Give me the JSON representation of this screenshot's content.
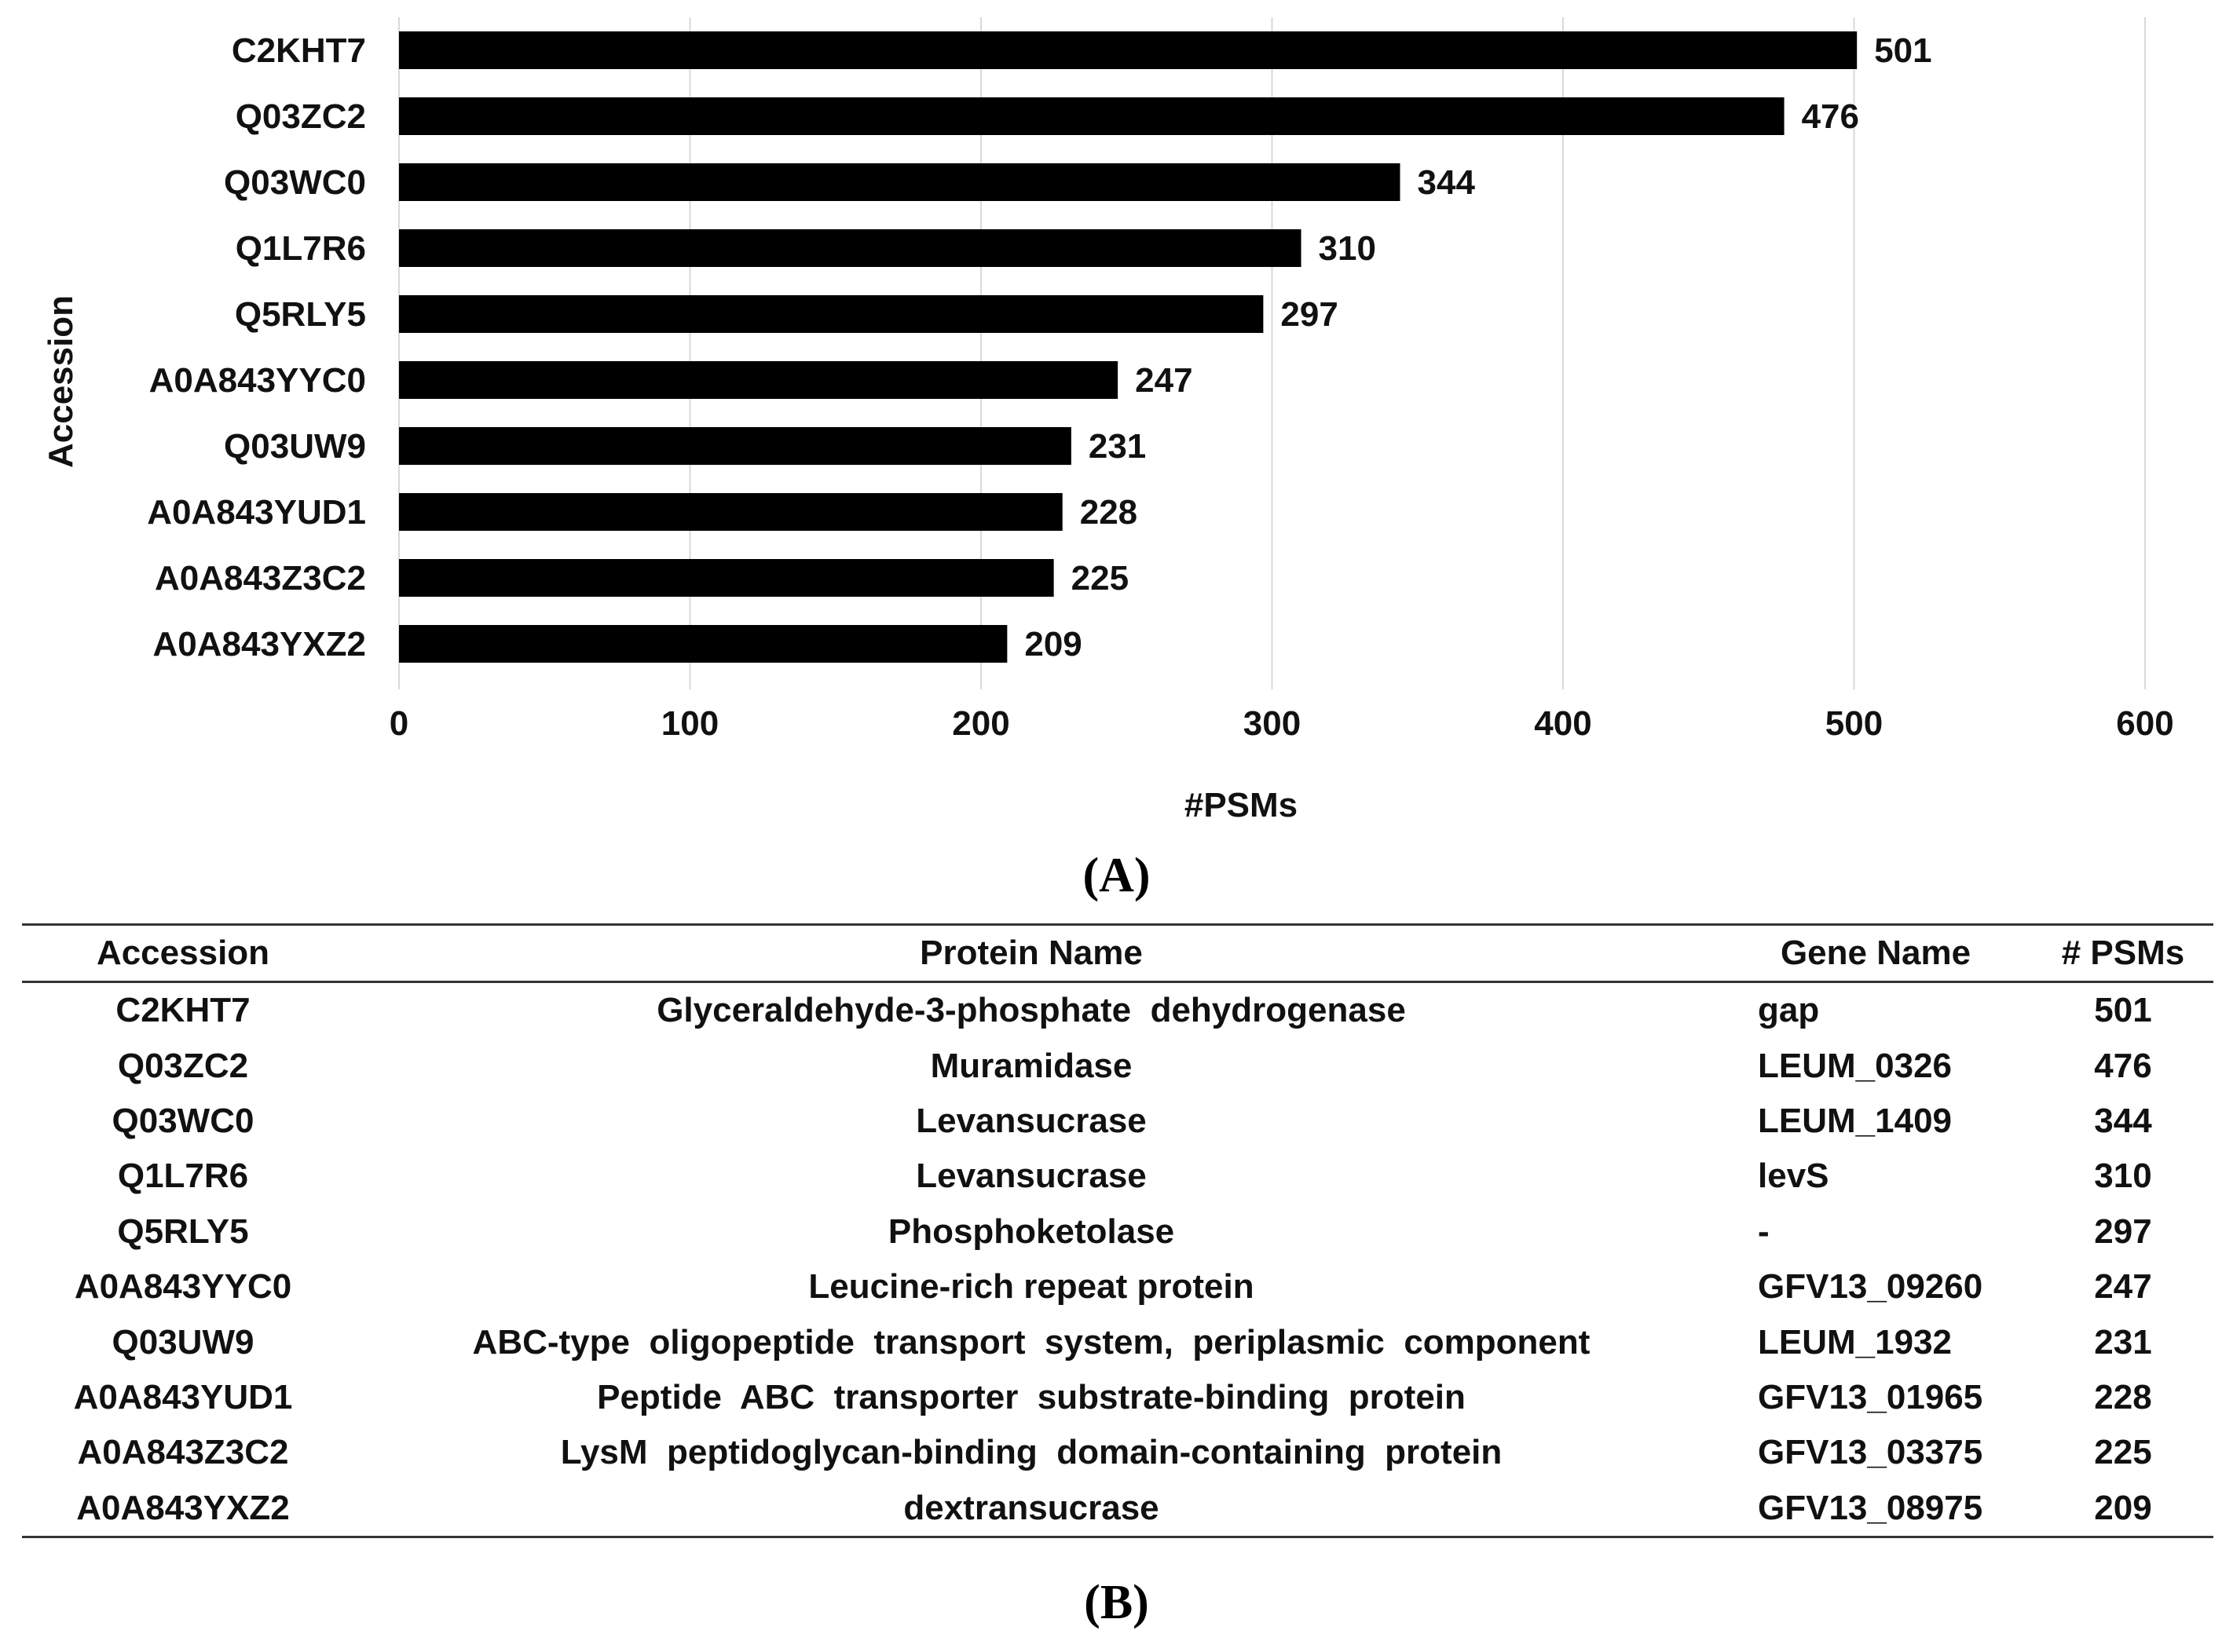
{
  "chart_data": {
    "type": "bar",
    "orientation": "horizontal",
    "title": "",
    "xlabel": "#PSMs",
    "ylabel": "Accession",
    "xlim": [
      0,
      600
    ],
    "xticks": [
      0,
      100,
      200,
      300,
      400,
      500,
      600
    ],
    "grid": "vertical",
    "categories": [
      "C2KHT7",
      "Q03ZC2",
      "Q03WC0",
      "Q1L7R6",
      "Q5RLY5",
      "A0A843YYC0",
      "Q03UW9",
      "A0A843YUD1",
      "A0A843Z3C2",
      "A0A843YXZ2"
    ],
    "values": [
      501,
      476,
      344,
      310,
      297,
      247,
      231,
      228,
      225,
      209
    ],
    "bar_color": "#000000",
    "grid_color": "#d9d9d9"
  },
  "panels": {
    "a_label": "(A)",
    "b_label": "(B)"
  },
  "table": {
    "headers": [
      "Accession",
      "Protein Name",
      "Gene Name",
      "# PSMs"
    ],
    "rows": [
      [
        "C2KHT7",
        "Glyceraldehyde-3-phosphate  dehydrogenase",
        "gap",
        "501"
      ],
      [
        "Q03ZC2",
        "Muramidase",
        "LEUM_0326",
        "476"
      ],
      [
        "Q03WC0",
        "Levansucrase",
        "LEUM_1409",
        "344"
      ],
      [
        "Q1L7R6",
        "Levansucrase",
        "levS",
        "310"
      ],
      [
        "Q5RLY5",
        "Phosphoketolase",
        "-",
        "297"
      ],
      [
        "A0A843YYC0",
        "Leucine-rich repeat protein",
        "GFV13_09260",
        "247"
      ],
      [
        "Q03UW9",
        "ABC-type  oligopeptide  transport  system,  periplasmic  component",
        "LEUM_1932",
        "231"
      ],
      [
        "A0A843YUD1",
        "Peptide  ABC  transporter  substrate-binding  protein",
        "GFV13_01965",
        "228"
      ],
      [
        "A0A843Z3C2",
        "LysM  peptidoglycan-binding  domain-containing  protein",
        "GFV13_03375",
        "225"
      ],
      [
        "A0A843YXZ2",
        "dextransucrase",
        "GFV13_08975",
        "209"
      ]
    ]
  }
}
